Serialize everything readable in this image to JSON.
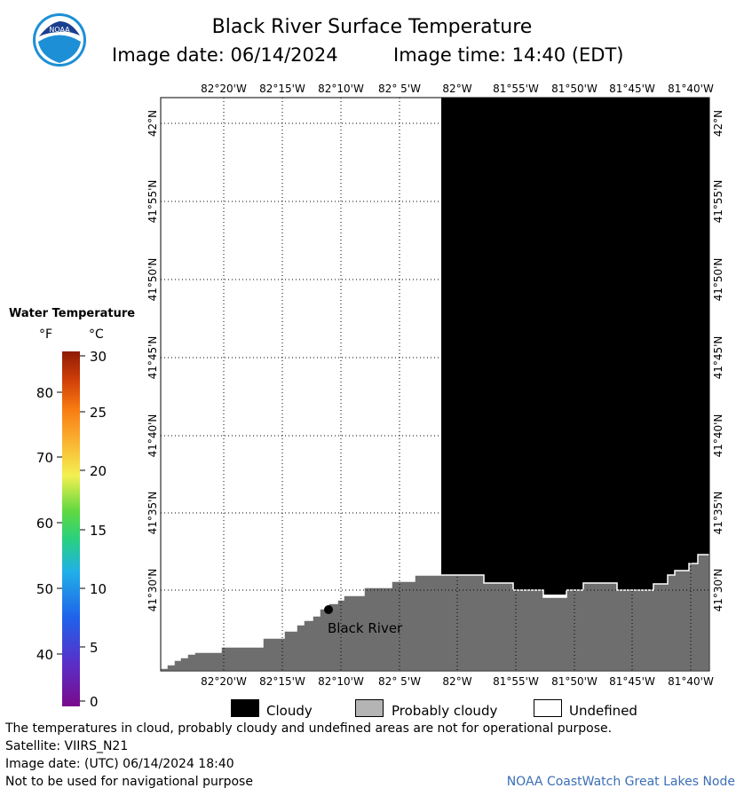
{
  "header": {
    "title": "Black River Surface Temperature",
    "image_date_label": "Image date: 06/14/2024",
    "image_time_label": "Image time: 14:40 (EDT)",
    "logo_text": "NOAA"
  },
  "map": {
    "lon_labels": [
      "82°20'W",
      "82°15'W",
      "82°10'W",
      "82° 5'W",
      "82°W",
      "81°55'W",
      "81°50'W",
      "81°45'W",
      "81°40'W"
    ],
    "lat_labels": [
      "42°N",
      "41°55'N",
      "41°50'N",
      "41°45'N",
      "41°40'N",
      "41°35'N",
      "41°30'N"
    ],
    "location_label": "Black River",
    "colors": {
      "cloud": "#000000",
      "land": "#6e6e6e",
      "undefined": "#ffffff"
    }
  },
  "colorbar": {
    "title": "Water Temperature",
    "unit_f": "°F",
    "unit_c": "°C",
    "f_ticks": [
      "80",
      "70",
      "60",
      "50",
      "40"
    ],
    "c_ticks": [
      "30",
      "25",
      "20",
      "15",
      "10",
      "5",
      "0"
    ]
  },
  "legend": {
    "cloudy": "Cloudy",
    "probably_cloudy": "Probably cloudy",
    "undefined": "Undefined",
    "colors": {
      "cloudy": "#000000",
      "probably_cloudy": "#b4b4b4",
      "undefined": "#ffffff"
    }
  },
  "footer": {
    "disclaimer": "The temperatures in cloud, probably cloudy and undefined areas are not for operational purpose.",
    "satellite": "Satellite: VIIRS_N21",
    "image_date_utc": "Image date: (UTC) 06/14/2024  18:40",
    "navigation": "Not to be used for navigational purpose",
    "node": "NOAA CoastWatch Great Lakes Node"
  }
}
